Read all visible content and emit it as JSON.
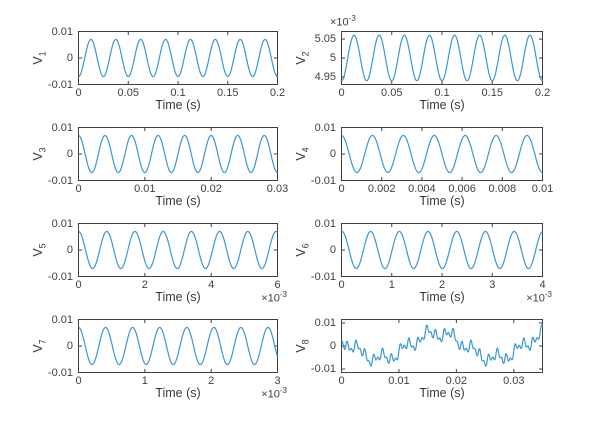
{
  "figure": {
    "background": "#ffffff",
    "line_color": "#3a96d5",
    "axes_color": "#3f3f3f",
    "label_color": "#383838"
  },
  "chart_data": {
    "type": "line",
    "layout": {
      "rows": 4,
      "cols": 2,
      "grid": false,
      "legend": "none",
      "box": true,
      "tick_dir": "in"
    },
    "plots": [
      {
        "ylabel_base": "V",
        "ylabel_sub": "1",
        "xlabel": "Time (s)",
        "xlim": [
          0,
          0.2
        ],
        "xticks": [
          0,
          0.05,
          0.1,
          0.15,
          0.2
        ],
        "xtick_labels": [
          "0",
          "0.05",
          "0.1",
          "0.15",
          "0.2"
        ],
        "ylim": [
          -0.01,
          0.01
        ],
        "yticks": [
          -0.01,
          0,
          0.01
        ],
        "ytick_labels": [
          "-0.01",
          "0",
          "0.01"
        ],
        "y_multiplier": null,
        "x_multiplier": null,
        "signal": {
          "offset": 0,
          "components": [
            {
              "freq": 40,
              "amp": 0.007,
              "phase_deg": -90
            }
          ]
        },
        "samples": 700
      },
      {
        "ylabel_base": "V",
        "ylabel_sub": "2",
        "xlabel": "Time (s)",
        "xlim": [
          0,
          0.2
        ],
        "xticks": [
          0,
          0.05,
          0.1,
          0.15,
          0.2
        ],
        "xtick_labels": [
          "0",
          "0.05",
          "0.1",
          "0.15",
          "0.2"
        ],
        "ylim": [
          0.00493,
          0.00507
        ],
        "yticks": [
          0.00495,
          0.005,
          0.00505
        ],
        "ytick_labels": [
          "4.95",
          "5",
          "5.05"
        ],
        "y_multiplier": {
          "prefix": "×10",
          "exp": "-3"
        },
        "x_multiplier": null,
        "signal": {
          "offset": 0.005,
          "components": [
            {
              "freq": 40,
              "amp": 6e-05,
              "phase_deg": -90
            }
          ]
        },
        "samples": 700
      },
      {
        "ylabel_base": "V",
        "ylabel_sub": "3",
        "xlabel": "Time (s)",
        "xlim": [
          0,
          0.03
        ],
        "xticks": [
          0,
          0.01,
          0.02,
          0.03
        ],
        "xtick_labels": [
          "0",
          "0.01",
          "0.02",
          "0.03"
        ],
        "ylim": [
          -0.01,
          0.01
        ],
        "yticks": [
          -0.01,
          0,
          0.01
        ],
        "ytick_labels": [
          "-0.01",
          "0",
          "0.01"
        ],
        "y_multiplier": null,
        "x_multiplier": null,
        "signal": {
          "offset": 0,
          "components": [
            {
              "freq": 250,
              "amp": 0.007,
              "phase_deg": 90
            }
          ]
        },
        "samples": 700
      },
      {
        "ylabel_base": "V",
        "ylabel_sub": "4",
        "xlabel": "Time (s)",
        "xlim": [
          0,
          0.01
        ],
        "xticks": [
          0,
          0.002,
          0.004,
          0.006,
          0.008,
          0.01
        ],
        "xtick_labels": [
          "0",
          "0.002",
          "0.004",
          "0.006",
          "0.008",
          "0.01"
        ],
        "ylim": [
          -0.01,
          0.01
        ],
        "yticks": [
          -0.01,
          0,
          0.01
        ],
        "ytick_labels": [
          "-0.01",
          "0",
          "0.01"
        ],
        "y_multiplier": null,
        "x_multiplier": null,
        "signal": {
          "offset": 0,
          "components": [
            {
              "freq": 650,
              "amp": 0.007,
              "phase_deg": 90
            }
          ]
        },
        "samples": 700
      },
      {
        "ylabel_base": "V",
        "ylabel_sub": "5",
        "xlabel": "Time (s)",
        "xlim": [
          0,
          0.006
        ],
        "xticks": [
          0,
          0.002,
          0.004,
          0.006
        ],
        "xtick_labels": [
          "0",
          "2",
          "4",
          "6"
        ],
        "ylim": [
          -0.01,
          0.01
        ],
        "yticks": [
          -0.01,
          0,
          0.01
        ],
        "ytick_labels": [
          "-0.01",
          "0",
          "0.01"
        ],
        "y_multiplier": null,
        "x_multiplier": {
          "prefix": "×10",
          "exp": "-3"
        },
        "signal": {
          "offset": 0,
          "components": [
            {
              "freq": 1175,
              "amp": 0.007,
              "phase_deg": 90
            }
          ]
        },
        "samples": 800
      },
      {
        "ylabel_base": "V",
        "ylabel_sub": "6",
        "xlabel": "Time (s)",
        "xlim": [
          0,
          0.004
        ],
        "xticks": [
          0,
          0.001,
          0.002,
          0.003,
          0.004
        ],
        "xtick_labels": [
          "0",
          "1",
          "2",
          "3",
          "4"
        ],
        "ylim": [
          -0.01,
          0.01
        ],
        "yticks": [
          -0.01,
          0,
          0.01
        ],
        "ytick_labels": [
          "-0.01",
          "0",
          "0.01"
        ],
        "y_multiplier": null,
        "x_multiplier": {
          "prefix": "×10",
          "exp": "-3"
        },
        "signal": {
          "offset": 0,
          "components": [
            {
              "freq": 1750,
              "amp": 0.007,
              "phase_deg": 85
            }
          ]
        },
        "samples": 800
      },
      {
        "ylabel_base": "V",
        "ylabel_sub": "7",
        "xlabel": "Time (s)",
        "xlim": [
          0,
          0.003
        ],
        "xticks": [
          0,
          0.001,
          0.002,
          0.003
        ],
        "xtick_labels": [
          "0",
          "1",
          "2",
          "3"
        ],
        "ylim": [
          -0.01,
          0.01
        ],
        "yticks": [
          -0.01,
          0,
          0.01
        ],
        "ytick_labels": [
          "-0.01",
          "0",
          "0.01"
        ],
        "y_multiplier": null,
        "x_multiplier": {
          "prefix": "×10",
          "exp": "-3"
        },
        "signal": {
          "offset": 0,
          "components": [
            {
              "freq": 2450,
              "amp": 0.007,
              "phase_deg": 90
            }
          ]
        },
        "samples": 900
      },
      {
        "ylabel_base": "V",
        "ylabel_sub": "8",
        "xlabel": "Time (s)",
        "xlim": [
          0,
          0.035
        ],
        "xticks": [
          0,
          0.01,
          0.02,
          0.03
        ],
        "xtick_labels": [
          "0",
          "0.01",
          "0.02",
          "0.03"
        ],
        "ylim": [
          -0.0115,
          0.0115
        ],
        "yticks": [
          -0.01,
          0,
          0.01
        ],
        "ytick_labels": [
          "-0.01",
          "0",
          "0.01"
        ],
        "y_multiplier": null,
        "x_multiplier": null,
        "signal": {
          "offset": 0,
          "components": [
            {
              "freq": 50,
              "amp": 0.0055,
              "phase_deg": 150
            },
            {
              "freq": 250,
              "amp": 0.0018,
              "phase_deg": 180
            },
            {
              "freq": 650,
              "amp": 0.0016,
              "phase_deg": 200
            },
            {
              "freq": 1300,
              "amp": 0.0012,
              "phase_deg": 0
            }
          ]
        },
        "samples": 1600
      }
    ]
  }
}
